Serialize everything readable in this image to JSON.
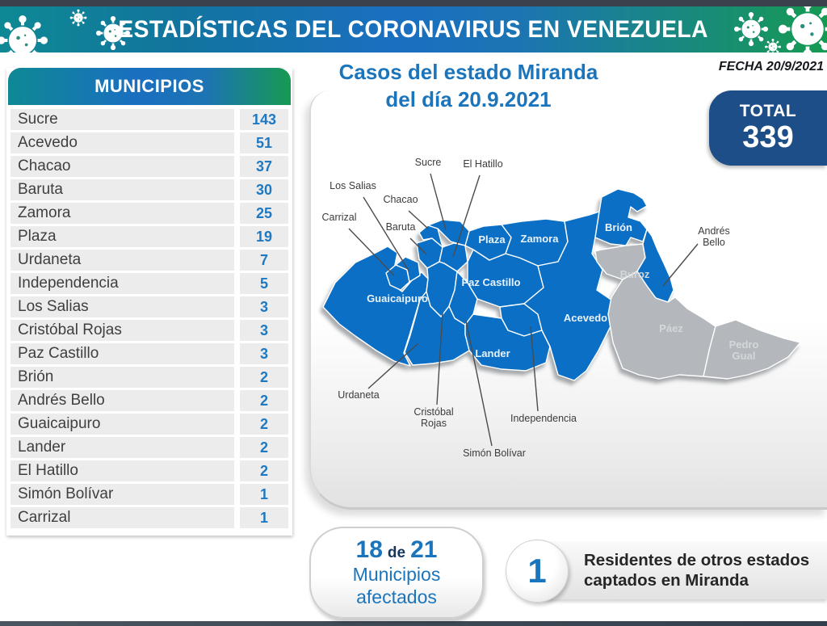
{
  "banner": {
    "title": "ESTADÍSTICAS DEL CORONAVIRUS EN VENEZUELA"
  },
  "header": {
    "date": "FECHA 20/9/2021"
  },
  "total": {
    "label": "TOTAL",
    "value": "339"
  },
  "title": {
    "line1": "Casos del estado Miranda",
    "line2": "del día 20.9.2021"
  },
  "table": {
    "header": "MUNICIPIOS",
    "rows": [
      {
        "name": "Sucre",
        "value": "143"
      },
      {
        "name": "Acevedo",
        "value": "51"
      },
      {
        "name": "Chacao",
        "value": "37"
      },
      {
        "name": "Baruta",
        "value": "30"
      },
      {
        "name": "Zamora",
        "value": "25"
      },
      {
        "name": "Plaza",
        "value": "19"
      },
      {
        "name": "Urdaneta",
        "value": "7"
      },
      {
        "name": "Independencia",
        "value": "5"
      },
      {
        "name": "Los Salias",
        "value": "3"
      },
      {
        "name": "Cristóbal Rojas",
        "value": "3"
      },
      {
        "name": "Paz Castillo",
        "value": "3"
      },
      {
        "name": "Brión",
        "value": "2"
      },
      {
        "name": "Andrés Bello",
        "value": "2"
      },
      {
        "name": "Guaicaipuro",
        "value": "2"
      },
      {
        "name": "Lander",
        "value": "2"
      },
      {
        "name": "El Hatillo",
        "value": "2"
      },
      {
        "name": "Simón Bolívar",
        "value": "1"
      },
      {
        "name": "Carrizal",
        "value": "1"
      }
    ]
  },
  "map": {
    "internal_labels": [
      {
        "text": "Plaza",
        "affected": true
      },
      {
        "text": "Zamora",
        "affected": true
      },
      {
        "text": "Paz Castillo",
        "affected": true
      },
      {
        "text": "Guaicaipuro",
        "affected": true
      },
      {
        "text": "Acevedo",
        "affected": true
      },
      {
        "text": "Brión",
        "affected": true
      },
      {
        "text": "Lander",
        "affected": true
      },
      {
        "text": "Buroz",
        "affected": false
      },
      {
        "text": "Páez",
        "affected": false
      },
      {
        "text": "Pedro\nGual",
        "affected": false
      }
    ],
    "external_labels": [
      "Sucre",
      "El Hatillo",
      "Los Salias",
      "Chacao",
      "Carrizal",
      "Baruta",
      "Andrés\nBello",
      "Urdaneta",
      "Cristóbal\nRojas",
      "Simón Bolívar",
      "Independencia"
    ]
  },
  "footer": {
    "affected": {
      "count": "18",
      "of": "de",
      "total": "21",
      "line2": "Municipios",
      "line3": "afectados"
    },
    "other": {
      "count": "1",
      "line1": "Residentes de otros estados",
      "line2": "captados en Miranda"
    }
  },
  "colors": {
    "accent_blue": "#1b75bc",
    "map_affected": "#0b70c5",
    "map_unaffected": "#b4b8bc",
    "badge_blue": "#1d4e87"
  }
}
